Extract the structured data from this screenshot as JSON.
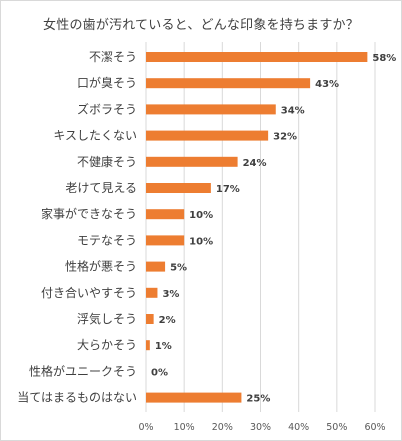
{
  "chart_data": {
    "type": "bar",
    "orientation": "horizontal",
    "title": "女性の歯が汚れていると、どんな印象を持ちますか？",
    "categories": [
      "不潔そう",
      "口が臭そう",
      "ズボラそう",
      "キスしたくない",
      "不健康そう",
      "老けて見える",
      "家事ができなそう",
      "モテなそう",
      "性格が悪そう",
      "付き合いやすそう",
      "浮気しそう",
      "大らかそう",
      "性格がユニークそう",
      "当てはまるものはない"
    ],
    "values": [
      58,
      43,
      34,
      32,
      24,
      17,
      10,
      10,
      5,
      3,
      2,
      1,
      0,
      25
    ],
    "value_labels": [
      "58%",
      "43%",
      "34%",
      "32%",
      "24%",
      "17%",
      "10%",
      "10%",
      "5%",
      "3%",
      "2%",
      "1%",
      "0%",
      "25%"
    ],
    "xlim": [
      0,
      60
    ],
    "x_ticks": [
      "0%",
      "10%",
      "20%",
      "30%",
      "40%",
      "50%",
      "60%"
    ],
    "bar_color": "#ed7d31",
    "grid": true,
    "legend": "none"
  }
}
